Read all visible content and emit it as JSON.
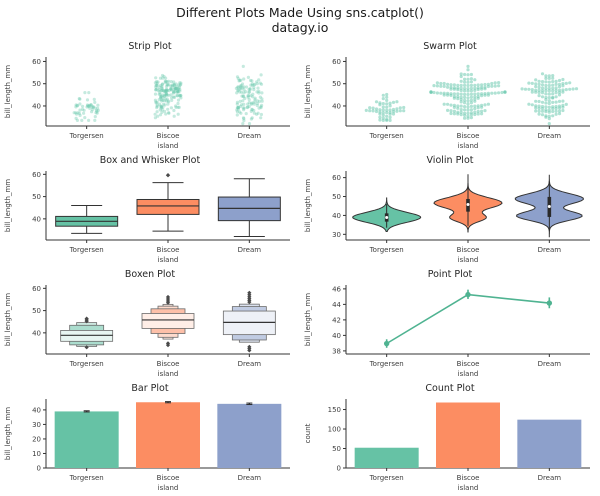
{
  "page": {
    "suptitle_line1": "Different Plots Made Using sns.catplot()",
    "suptitle_line2": "datagy.io"
  },
  "palette": {
    "categories": [
      "#66c2a5",
      "#fc8d62",
      "#8da0cb"
    ],
    "strip_point": "#6fcbb0",
    "point_line": "#4fb391",
    "spine": "#333333",
    "tick_text": "#3d3d3d",
    "outlier": "#4a4a4a",
    "background": "#ffffff"
  },
  "chart_data": [
    {
      "type": "strip",
      "title": "Strip Plot",
      "xlabel": "island",
      "ylabel": "bill_length_mm",
      "categories": [
        "Torgersen",
        "Biscoe",
        "Dream"
      ],
      "ylim": [
        31,
        62
      ],
      "yticks": [
        40,
        50,
        60
      ],
      "grid": false,
      "groups": [
        {
          "name": "Torgersen",
          "n": 52,
          "clip": [
            33.5,
            46.0
          ],
          "modes": [
            {
              "mu": 38.9,
              "sigma": 2.8,
              "w": 1
            }
          ]
        },
        {
          "name": "Biscoe",
          "n": 168,
          "clip": [
            34.5,
            59.6
          ],
          "modes": [
            {
              "mu": 38.8,
              "sigma": 2.2,
              "w": 0.26
            },
            {
              "mu": 47.4,
              "sigma": 2.9,
              "w": 0.74
            }
          ]
        },
        {
          "name": "Dream",
          "n": 124,
          "clip": [
            32.1,
            58.0
          ],
          "modes": [
            {
              "mu": 38.7,
              "sigma": 2.4,
              "w": 0.45
            },
            {
              "mu": 48.6,
              "sigma": 3.0,
              "w": 0.55
            }
          ]
        }
      ]
    },
    {
      "type": "swarm",
      "title": "Swarm Plot",
      "xlabel": "island",
      "ylabel": "bill_length_mm",
      "categories": [
        "Torgersen",
        "Biscoe",
        "Dream"
      ],
      "ylim": [
        31,
        62
      ],
      "yticks": [
        40,
        50,
        60
      ],
      "grid": false,
      "groups": [
        {
          "name": "Torgersen",
          "n": 52,
          "clip": [
            33.5,
            46.0
          ],
          "modes": [
            {
              "mu": 38.9,
              "sigma": 2.8,
              "w": 1
            }
          ]
        },
        {
          "name": "Biscoe",
          "n": 168,
          "clip": [
            34.5,
            59.6
          ],
          "modes": [
            {
              "mu": 38.8,
              "sigma": 2.2,
              "w": 0.26
            },
            {
              "mu": 47.4,
              "sigma": 2.9,
              "w": 0.74
            }
          ]
        },
        {
          "name": "Dream",
          "n": 124,
          "clip": [
            32.1,
            58.0
          ],
          "modes": [
            {
              "mu": 38.7,
              "sigma": 2.4,
              "w": 0.45
            },
            {
              "mu": 48.6,
              "sigma": 3.0,
              "w": 0.55
            }
          ]
        }
      ]
    },
    {
      "type": "box",
      "title": "Box and Whisker Plot",
      "xlabel": "island",
      "ylabel": "bill_length_mm",
      "categories": [
        "Torgersen",
        "Biscoe",
        "Dream"
      ],
      "ylim": [
        30.5,
        61.5
      ],
      "yticks": [
        40,
        50,
        60
      ],
      "grid": false,
      "stats": [
        {
          "whislo": 33.5,
          "q1": 36.7,
          "med": 38.9,
          "q3": 41.1,
          "whishi": 46.0,
          "outliers": []
        },
        {
          "whislo": 34.5,
          "q1": 42.0,
          "med": 45.8,
          "q3": 48.7,
          "whishi": 56.3,
          "outliers": [
            59.6
          ]
        },
        {
          "whislo": 32.1,
          "q1": 39.2,
          "med": 44.7,
          "q3": 49.8,
          "whishi": 58.0,
          "outliers": []
        }
      ]
    },
    {
      "type": "violin",
      "title": "Violin Plot",
      "xlabel": "island",
      "ylabel": "bill_length_mm",
      "categories": [
        "Torgersen",
        "Biscoe",
        "Dream"
      ],
      "ylim": [
        27,
        63.5
      ],
      "yticks": [
        30,
        40,
        50,
        60
      ],
      "grid": false,
      "violins": [
        {
          "range": [
            31.5,
            49.5
          ],
          "modes": [
            {
              "mu": 39.0,
              "sigma": 2.6,
              "w": 1
            }
          ],
          "inner": {
            "lo": 33.5,
            "q1": 36.7,
            "med": 38.9,
            "q3": 41.1,
            "hi": 46.0
          }
        },
        {
          "range": [
            31.0,
            61.8
          ],
          "modes": [
            {
              "mu": 38.8,
              "sigma": 2.1,
              "w": 0.28
            },
            {
              "mu": 46.6,
              "sigma": 2.8,
              "w": 0.72
            }
          ],
          "inner": {
            "lo": 34.5,
            "q1": 42.0,
            "med": 45.8,
            "q3": 48.7,
            "hi": 56.3
          }
        },
        {
          "range": [
            28.5,
            61.5
          ],
          "modes": [
            {
              "mu": 39.8,
              "sigma": 2.4,
              "w": 0.46
            },
            {
              "mu": 48.8,
              "sigma": 2.7,
              "w": 0.54
            }
          ],
          "inner": {
            "lo": 32.1,
            "q1": 39.2,
            "med": 44.7,
            "q3": 49.8,
            "hi": 58.0
          }
        }
      ]
    },
    {
      "type": "boxen",
      "title": "Boxen Plot",
      "xlabel": "island",
      "ylabel": "bill_length_mm",
      "categories": [
        "Torgersen",
        "Biscoe",
        "Dream"
      ],
      "ylim": [
        30.5,
        61.5
      ],
      "yticks": [
        40,
        50,
        60
      ],
      "grid": false,
      "items": [
        {
          "median": 38.9,
          "levels": [
            {
              "lo": 36.2,
              "hi": 41.1,
              "hw": 26
            },
            {
              "lo": 34.6,
              "hi": 43.4,
              "hw": 17
            },
            {
              "lo": 33.9,
              "hi": 44.6,
              "hw": 10
            }
          ],
          "out_top": [
            45.2,
            45.8,
            46.4
          ],
          "out_bot": [
            33.5
          ]
        },
        {
          "median": 45.8,
          "levels": [
            {
              "lo": 42.0,
              "hi": 48.7,
              "hw": 26
            },
            {
              "lo": 39.7,
              "hi": 50.8,
              "hw": 17
            },
            {
              "lo": 38.0,
              "hi": 52.0,
              "hw": 10
            },
            {
              "lo": 37.2,
              "hi": 52.8,
              "hw": 5
            }
          ],
          "out_top": [
            53.5,
            54.3,
            55.2,
            56.1
          ],
          "out_bot": [
            34.5,
            35.3
          ]
        },
        {
          "median": 44.7,
          "levels": [
            {
              "lo": 39.2,
              "hi": 49.8,
              "hw": 26
            },
            {
              "lo": 36.8,
              "hi": 51.8,
              "hw": 17
            },
            {
              "lo": 35.8,
              "hi": 52.9,
              "hw": 10
            }
          ],
          "out_top": [
            53.8,
            54.6,
            55.4,
            56.2,
            57.1,
            58.0
          ],
          "out_bot": [
            32.1,
            32.9,
            33.7
          ]
        }
      ]
    },
    {
      "type": "point",
      "title": "Point Plot",
      "xlabel": "island",
      "ylabel": "bill_length_mm",
      "categories": [
        "Torgersen",
        "Biscoe",
        "Dream"
      ],
      "ylim": [
        37.6,
        46.5
      ],
      "yticks": [
        38,
        40,
        42,
        44,
        46
      ],
      "grid": false,
      "values": [
        38.95,
        45.26,
        44.17
      ],
      "err_lo": [
        38.4,
        44.7,
        43.5
      ],
      "err_hi": [
        39.5,
        45.9,
        44.9
      ]
    },
    {
      "type": "bar",
      "title": "Bar Plot",
      "xlabel": "island",
      "ylabel": "bill_length_mm",
      "categories": [
        "Torgersen",
        "Biscoe",
        "Dream"
      ],
      "ylim": [
        0,
        47.5
      ],
      "yticks": [
        0,
        10,
        20,
        30,
        40
      ],
      "grid": false,
      "values": [
        38.95,
        45.26,
        44.17
      ],
      "err_lo": [
        38.6,
        44.9,
        43.7
      ],
      "err_hi": [
        39.4,
        45.7,
        44.7
      ]
    },
    {
      "type": "count",
      "title": "Count Plot",
      "xlabel": "island",
      "ylabel": "count",
      "categories": [
        "Torgersen",
        "Biscoe",
        "Dream"
      ],
      "ylim": [
        0,
        177
      ],
      "yticks": [
        0,
        50,
        100,
        150
      ],
      "grid": false,
      "values": [
        52,
        168,
        124
      ]
    }
  ]
}
